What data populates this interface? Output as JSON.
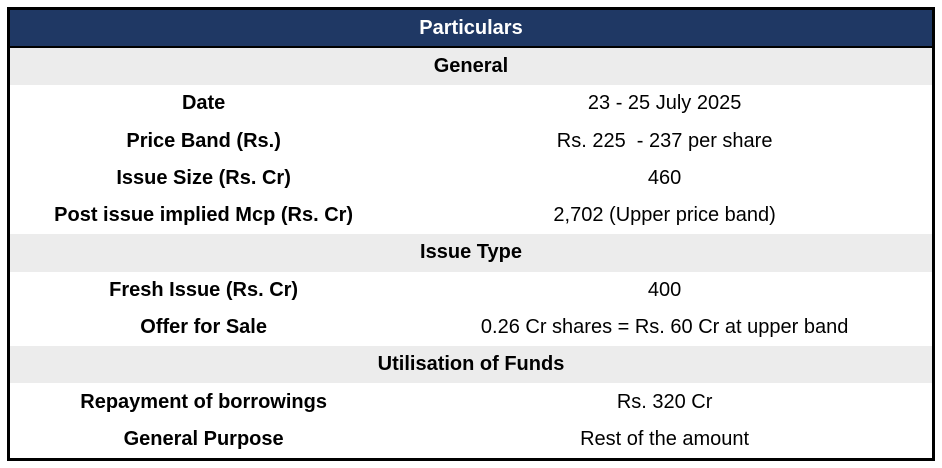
{
  "table": {
    "title": "Particulars",
    "colors": {
      "header_bg": "#1F3864",
      "header_text": "#FFFFFF",
      "section_bg": "#ECECEC",
      "row_bg": "#FFFFFF",
      "border": "#000000",
      "text": "#000000"
    },
    "sections": [
      {
        "heading": "General",
        "rows": [
          {
            "label": "Date",
            "value": "23 - 25 July 2025"
          },
          {
            "label": "Price Band (Rs.)",
            "value": "Rs. 225  - 237 per share"
          },
          {
            "label": "Issue Size (Rs. Cr)",
            "value": "460"
          },
          {
            "label": "Post issue implied Mcp (Rs. Cr)",
            "value": "2,702 (Upper price band)"
          }
        ]
      },
      {
        "heading": "Issue Type",
        "rows": [
          {
            "label": "Fresh Issue (Rs. Cr)",
            "value": "400"
          },
          {
            "label": "Offer for Sale",
            "value": "0.26 Cr shares = Rs. 60 Cr at upper band"
          }
        ]
      },
      {
        "heading": "Utilisation of Funds",
        "rows": [
          {
            "label": "Repayment of borrowings",
            "value": "Rs. 320 Cr"
          },
          {
            "label": "General Purpose",
            "value": "Rest of the amount"
          }
        ]
      }
    ]
  }
}
